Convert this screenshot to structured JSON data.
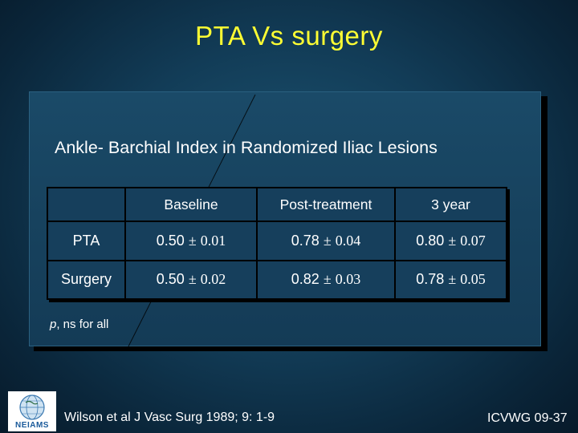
{
  "slide": {
    "title": "PTA Vs surgery",
    "subtitle": "Ankle- Barchial Index  in Randomized Iliac Lesions",
    "note_italic": "p",
    "note_rest": ", ns for all",
    "citation": "Wilson et al  J Vasc Surg 1989; 9: 1-9",
    "slide_id": "ICVWG 09-37",
    "logo_text": "NEIAMS"
  },
  "table": {
    "headers": [
      "",
      "Baseline",
      "Post-treatment",
      "3 year"
    ],
    "rows": [
      {
        "label": "PTA",
        "cells": [
          {
            "value": "0.50",
            "sd": "0.01"
          },
          {
            "value": "0.78",
            "sd": "0.04"
          },
          {
            "value": "0.80",
            "sd": "0.07"
          }
        ]
      },
      {
        "label": "Surgery",
        "cells": [
          {
            "value": "0.50",
            "sd": "0.02"
          },
          {
            "value": "0.82",
            "sd": "0.03"
          },
          {
            "value": "0.78",
            "sd": "0.05"
          }
        ]
      }
    ],
    "pm_symbol": "±"
  },
  "colors": {
    "title": "#ffff33",
    "text": "#ffffff",
    "background": "#123c57"
  }
}
